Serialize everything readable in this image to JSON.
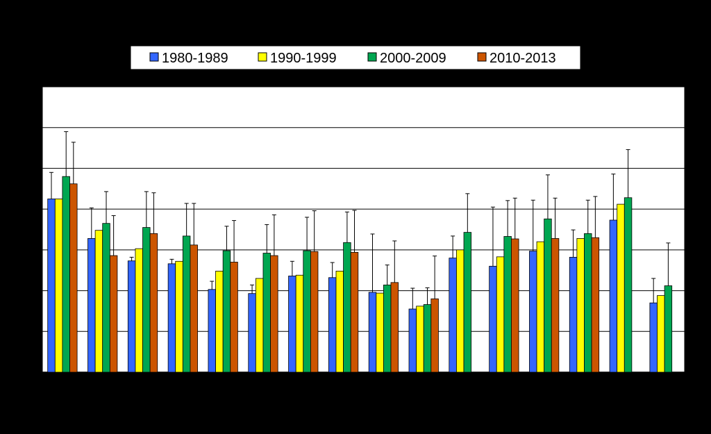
{
  "chart_data": {
    "type": "bar",
    "categories": [
      "",
      "",
      "",
      "",
      "",
      "",
      "",
      "",
      "",
      "",
      "",
      "",
      "",
      "",
      "",
      ""
    ],
    "ylim": [
      0,
      7
    ],
    "grid": true,
    "legend_position": "top",
    "error_bars": true,
    "series": [
      {
        "name": "1980-1989",
        "color": "#3366FF",
        "values": [
          4.25,
          3.28,
          2.73,
          2.66,
          2.03,
          1.93,
          2.36,
          2.32,
          1.96,
          1.55,
          2.8,
          2.6,
          2.97,
          2.82,
          3.73,
          1.7
        ],
        "errors": [
          0.65,
          0.75,
          0.09,
          0.11,
          0.2,
          0.21,
          0.36,
          0.37,
          1.43,
          0.51,
          0.54,
          1.45,
          1.25,
          0.67,
          1.13,
          0.6
        ]
      },
      {
        "name": "1990-1999",
        "color": "#FFFF00",
        "values": [
          4.25,
          3.48,
          3.03,
          2.72,
          2.48,
          2.3,
          2.38,
          2.48,
          1.94,
          1.62,
          3.0,
          2.83,
          3.2,
          3.28,
          4.12,
          1.88
        ]
      },
      {
        "name": "2000-2009",
        "color": "#00A651",
        "values": [
          4.8,
          3.65,
          3.55,
          3.34,
          2.98,
          2.92,
          2.98,
          3.18,
          2.14,
          1.66,
          3.43,
          3.33,
          3.76,
          3.4,
          4.28,
          2.12
        ],
        "errors": [
          1.1,
          0.78,
          0.88,
          0.8,
          0.6,
          0.7,
          0.82,
          0.75,
          0.49,
          0.41,
          0.95,
          0.88,
          1.08,
          0.82,
          1.18,
          1.05
        ]
      },
      {
        "name": "2010-2013",
        "color": "#CC5500",
        "values": [
          4.62,
          2.86,
          3.4,
          3.12,
          2.7,
          2.86,
          2.96,
          2.94,
          2.2,
          1.8,
          null,
          3.27,
          3.28,
          3.3,
          null,
          null
        ],
        "errors": [
          1.02,
          0.98,
          1.0,
          1.02,
          1.02,
          1.0,
          1.0,
          1.03,
          1.02,
          1.05,
          null,
          1.0,
          0.99,
          1.01,
          null,
          null
        ]
      }
    ],
    "title": "",
    "xlabel": "",
    "ylabel": ""
  }
}
